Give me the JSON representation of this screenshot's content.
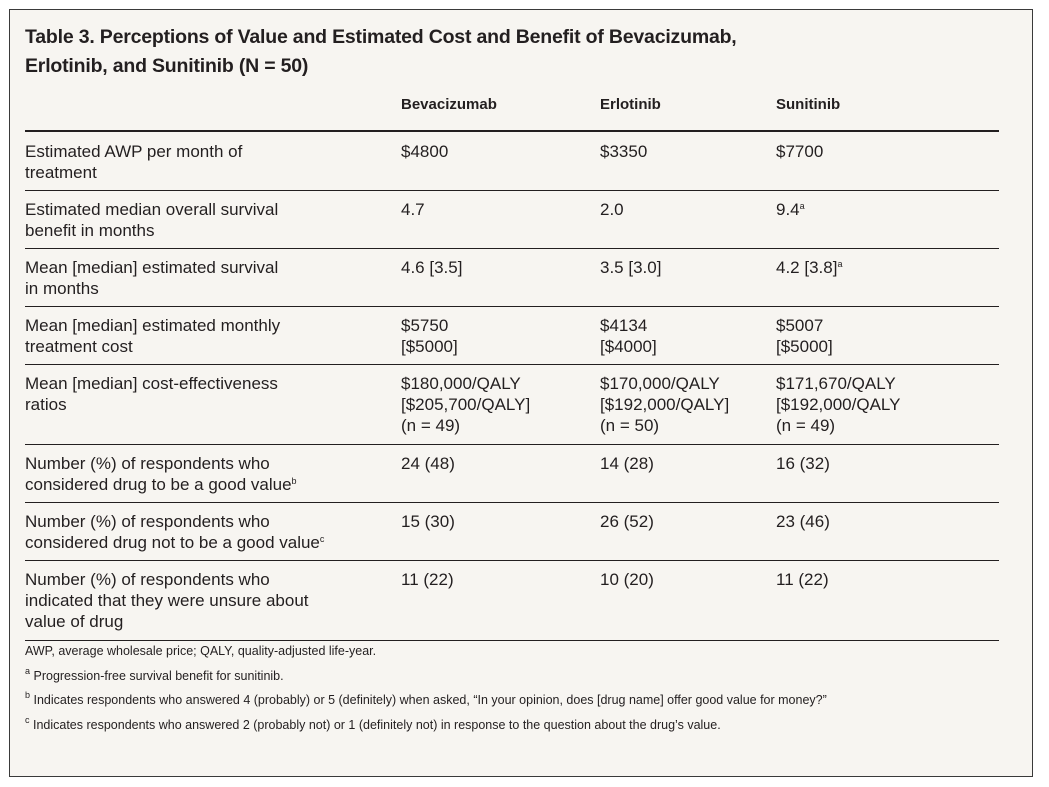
{
  "title": {
    "line1": "Table 3. Perceptions of Value and Estimated Cost and Benefit of Bevacizumab,",
    "line2": "Erlotinib, and Sunitinib (N = 50)"
  },
  "columns": [
    "Bevacizumab",
    "Erlotinib",
    "Sunitinib"
  ],
  "rows": [
    {
      "label": [
        "Estimated AWP per month of",
        "treatment"
      ],
      "c1": [
        "$4800"
      ],
      "c2": [
        "$3350"
      ],
      "c3": [
        "$7700"
      ]
    },
    {
      "label": [
        "Estimated median overall survival",
        "benefit in months"
      ],
      "c1": [
        "4.7"
      ],
      "c2": [
        "2.0"
      ],
      "c3": [
        "9.4"
      ],
      "c3_sup": "a"
    },
    {
      "label": [
        "Mean [median] estimated survival",
        "in months"
      ],
      "c1": [
        "4.6 [3.5]"
      ],
      "c2": [
        "3.5 [3.0]"
      ],
      "c3": [
        "4.2 [3.8]"
      ],
      "c3_sup": "a"
    },
    {
      "label": [
        "Mean [median] estimated monthly",
        "treatment cost"
      ],
      "c1": [
        "$5750",
        "[$5000]"
      ],
      "c2": [
        "$4134",
        "[$4000]"
      ],
      "c3": [
        "$5007",
        "[$5000]"
      ]
    },
    {
      "label": [
        "Mean [median] cost-effectiveness",
        "ratios"
      ],
      "c1": [
        "$180,000/QALY",
        "[$205,700/QALY]",
        "(n = 49)"
      ],
      "c2": [
        "$170,000/QALY",
        "[$192,000/QALY]",
        "(n = 50)"
      ],
      "c3": [
        "$171,670/QALY",
        "[$192,000/QALY",
        "(n = 49)"
      ]
    },
    {
      "label": [
        "Number (%) of respondents who",
        "considered drug to be a good value"
      ],
      "label_sup": "b",
      "c1": [
        "24 (48)"
      ],
      "c2": [
        "14 (28)"
      ],
      "c3": [
        "16 (32)"
      ]
    },
    {
      "label": [
        "Number (%) of respondents who",
        "considered drug not to be a good value"
      ],
      "label_sup": "c",
      "c1": [
        "15 (30)"
      ],
      "c2": [
        "26 (52)"
      ],
      "c3": [
        "23 (46)"
      ]
    },
    {
      "label": [
        "Number (%) of respondents who",
        "indicated that they were unsure about",
        "value of drug"
      ],
      "c1": [
        "11 (22)"
      ],
      "c2": [
        "10 (20)"
      ],
      "c3": [
        "11 (22)"
      ]
    }
  ],
  "footnotes": {
    "abbrev": "AWP, average wholesale price; QALY, quality-adjusted life-year.",
    "a_mark": "a",
    "a_text": " Progression-free survival benefit for sunitinib.",
    "b_mark": "b",
    "b_text": " Indicates respondents who answered 4 (probably) or 5 (definitely) when asked, “In your opinion, does [drug name] offer good value for money?”",
    "c_mark": "c",
    "c_text": " Indicates respondents who answered 2 (probably not) or 1 (definitely not) in response to the question about the drug’s value."
  }
}
